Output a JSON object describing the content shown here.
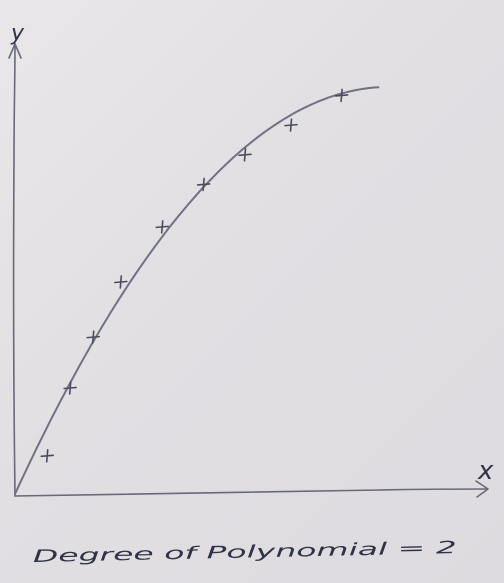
{
  "chart_data": {
    "type": "scatter",
    "xlabel": "x",
    "ylabel": "y",
    "caption": "Degree of Polynomial = 2",
    "xlim": [
      0,
      10
    ],
    "ylim": [
      0,
      10
    ],
    "grid": false,
    "points": [
      {
        "x": 0.7,
        "y": 0.9
      },
      {
        "x": 1.2,
        "y": 2.5
      },
      {
        "x": 1.7,
        "y": 3.7
      },
      {
        "x": 2.3,
        "y": 5.0
      },
      {
        "x": 3.2,
        "y": 6.3
      },
      {
        "x": 4.1,
        "y": 7.3
      },
      {
        "x": 5.0,
        "y": 8.0
      },
      {
        "x": 6.0,
        "y": 8.7
      },
      {
        "x": 7.1,
        "y": 9.4
      }
    ],
    "fit": {
      "degree": 2,
      "x_range": [
        0,
        7.9
      ],
      "coefficients": [
        0,
        2.36,
        -0.145
      ]
    },
    "colors": {
      "ink": "#4a4c5c",
      "axis": "#686a78",
      "text": "#2f3345"
    }
  }
}
